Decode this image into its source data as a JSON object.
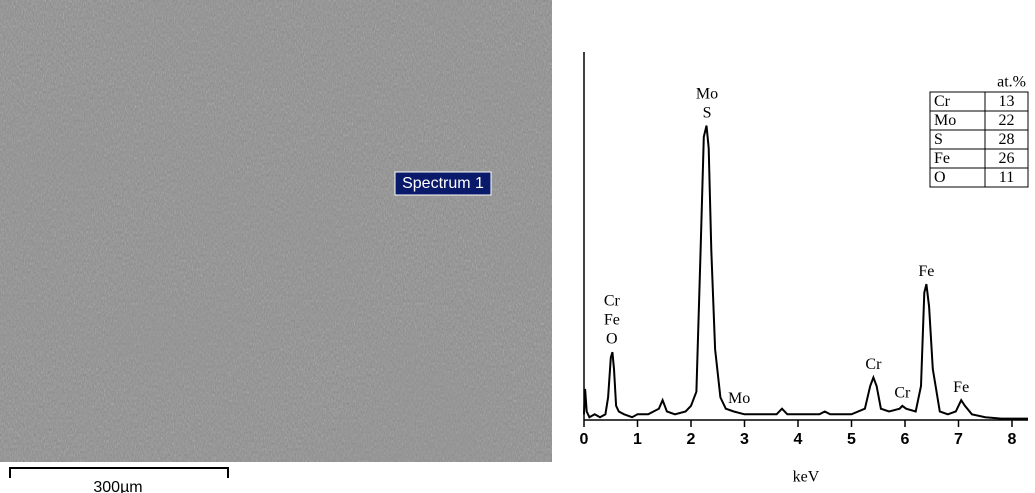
{
  "sem_image": {
    "spectrum_label": "Spectrum 1",
    "scale_bar": "300µm"
  },
  "chart_data": {
    "type": "line",
    "xlabel": "keV",
    "color": "#000000",
    "x": [
      0,
      0.02,
      0.05,
      0.1,
      0.2,
      0.3,
      0.4,
      0.45,
      0.5,
      0.53,
      0.56,
      0.6,
      0.65,
      0.75,
      0.9,
      1.0,
      1.2,
      1.4,
      1.47,
      1.55,
      1.7,
      1.9,
      2.0,
      2.1,
      2.18,
      2.24,
      2.29,
      2.33,
      2.38,
      2.45,
      2.55,
      2.65,
      2.8,
      3.0,
      3.3,
      3.6,
      3.7,
      3.8,
      4.0,
      4.4,
      4.5,
      4.6,
      5.0,
      5.25,
      5.35,
      5.41,
      5.47,
      5.55,
      5.7,
      5.9,
      5.95,
      6.02,
      6.2,
      6.3,
      6.36,
      6.4,
      6.45,
      6.52,
      6.65,
      6.8,
      6.95,
      7.05,
      7.12,
      7.25,
      7.5,
      7.8,
      8.3
    ],
    "values": [
      2,
      11,
      3,
      1,
      2,
      1,
      2,
      8,
      22,
      24,
      18,
      5,
      3,
      2,
      1,
      2,
      2,
      4,
      7,
      3,
      2,
      3,
      5,
      10,
      60,
      100,
      104,
      96,
      60,
      25,
      8,
      4,
      3,
      2,
      2,
      2,
      4,
      2,
      2,
      2,
      3,
      2,
      2,
      4,
      12,
      15,
      12,
      4,
      3,
      4,
      5,
      4,
      3,
      12,
      45,
      48,
      40,
      18,
      3,
      2,
      3,
      7,
      5,
      2,
      1,
      0.5,
      0.5
    ],
    "xlim": [
      0,
      8.3
    ],
    "ylim": [
      0,
      130
    ],
    "xticks": [
      0,
      1,
      2,
      3,
      4,
      5,
      6,
      7,
      8
    ],
    "annotations": [
      {
        "text": [
          "Cr",
          "Fe",
          "O"
        ],
        "x": 0.52
      },
      {
        "text": [
          "Mo",
          "S"
        ],
        "x": 2.3
      },
      {
        "text": [
          "Mo"
        ],
        "x": 2.9
      },
      {
        "text": [
          "Cr"
        ],
        "x": 5.41
      },
      {
        "text": [
          "Cr"
        ],
        "x": 5.95
      },
      {
        "text": [
          "Fe"
        ],
        "x": 6.4
      },
      {
        "text": [
          "Fe"
        ],
        "x": 7.05
      }
    ]
  },
  "composition_table": {
    "header": "at.%",
    "rows": [
      [
        "Cr",
        "13"
      ],
      [
        "Mo",
        "22"
      ],
      [
        "S",
        "28"
      ],
      [
        "Fe",
        "26"
      ],
      [
        "O",
        "11"
      ]
    ]
  }
}
